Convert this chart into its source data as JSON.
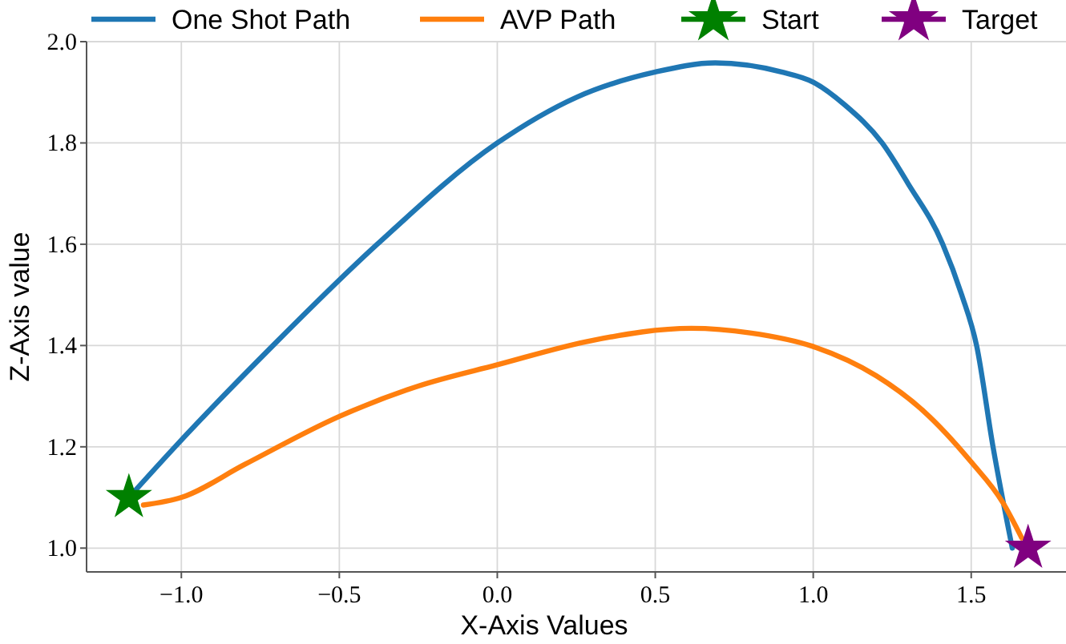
{
  "chart_data": {
    "type": "line",
    "xlabel": "X-Axis Values",
    "ylabel": "Z-Axis value",
    "xlim": [
      -1.3,
      1.8
    ],
    "ylim": [
      0.953,
      2.0
    ],
    "xticks": [
      {
        "value": -1.0,
        "label": "−1.0"
      },
      {
        "value": -0.5,
        "label": "−0.5"
      },
      {
        "value": 0,
        "label": "0.0"
      },
      {
        "value": 0.5,
        "label": "0.5"
      },
      {
        "value": 1.0,
        "label": "1.0"
      },
      {
        "value": 1.5,
        "label": "1.5"
      }
    ],
    "yticks": [
      {
        "value": 1.0,
        "label": "1.0"
      },
      {
        "value": 1.2,
        "label": "1.2"
      },
      {
        "value": 1.4,
        "label": "1.4"
      },
      {
        "value": 1.6,
        "label": "1.6"
      },
      {
        "value": 1.8,
        "label": "1.8"
      },
      {
        "value": 2.0,
        "label": "2.0"
      }
    ],
    "grid": true,
    "legend": "top",
    "series": [
      {
        "name": "One Shot Path",
        "color": "#1f77b4",
        "x": [
          -1.166,
          -1.02,
          -0.71,
          -0.38,
          0,
          0.25,
          0.5,
          0.69,
          0.9,
          1.0,
          1.1,
          1.218,
          1.3,
          1.41,
          1.47,
          1.517,
          1.569,
          1.63
        ],
        "values": [
          1.1,
          1.2,
          1.4,
          1.6,
          1.8,
          1.89,
          1.94,
          1.958,
          1.94,
          1.92,
          1.875,
          1.8,
          1.72,
          1.6,
          1.5,
          1.4,
          1.2,
          1.0
        ]
      },
      {
        "name": "AVP Path",
        "color": "#ff7f0e",
        "x": [
          -1.12,
          -1.0,
          -0.8,
          -0.5,
          -0.25,
          0,
          0.3,
          0.614,
          0.8,
          1.0,
          1.2,
          1.35,
          1.5,
          1.6,
          1.66
        ],
        "values": [
          1.085,
          1.1,
          1.165,
          1.26,
          1.32,
          1.362,
          1.41,
          1.434,
          1.425,
          1.398,
          1.34,
          1.27,
          1.17,
          1.09,
          1.02
        ]
      },
      {
        "name": "Start",
        "color": "#008000",
        "type": "scatter",
        "marker": "star",
        "x": [
          -1.166
        ],
        "values": [
          1.1
        ]
      },
      {
        "name": "Target",
        "color": "#800080",
        "type": "scatter",
        "marker": "star",
        "x": [
          1.68
        ],
        "values": [
          1.0
        ]
      }
    ]
  }
}
